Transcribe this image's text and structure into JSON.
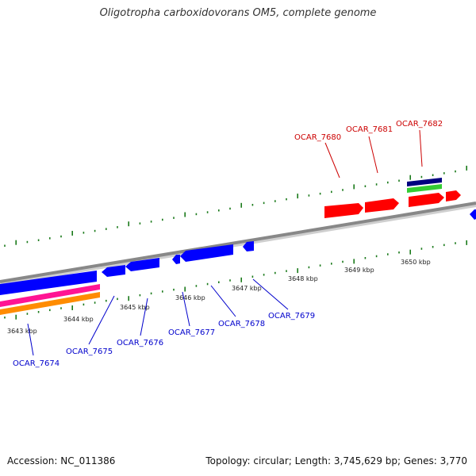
{
  "title": "Oligotropha carboxidovorans OM5, complete genome",
  "footer": {
    "accession": "Accession: NC_011386",
    "summary": "Topology: circular; Length: 3,745,629 bp; Genes: 3,770"
  },
  "colors": {
    "forward_cds": "#ff0000",
    "reverse_cds": "#0000ff",
    "backbone": "#888888",
    "ticks": "#1a7a1a",
    "label_forward": "#cc0000",
    "label_reverse": "#0000cc",
    "navy": "#000080",
    "green": "#33cc33",
    "magenta": "#ff1493",
    "orange": "#ff8c00"
  },
  "scale_labels": [
    "3643 kbp",
    "3644 kbp",
    "3645 kbp",
    "3646 kbp",
    "3647 kbp",
    "3648 kbp",
    "3649 kbp",
    "3650 kbp"
  ],
  "forward_genes": [
    "OCAR_7680",
    "OCAR_7681",
    "OCAR_7682"
  ],
  "reverse_genes": [
    "OCAR_7674",
    "OCAR_7675",
    "OCAR_7676",
    "OCAR_7677",
    "OCAR_7678",
    "OCAR_7679"
  ]
}
